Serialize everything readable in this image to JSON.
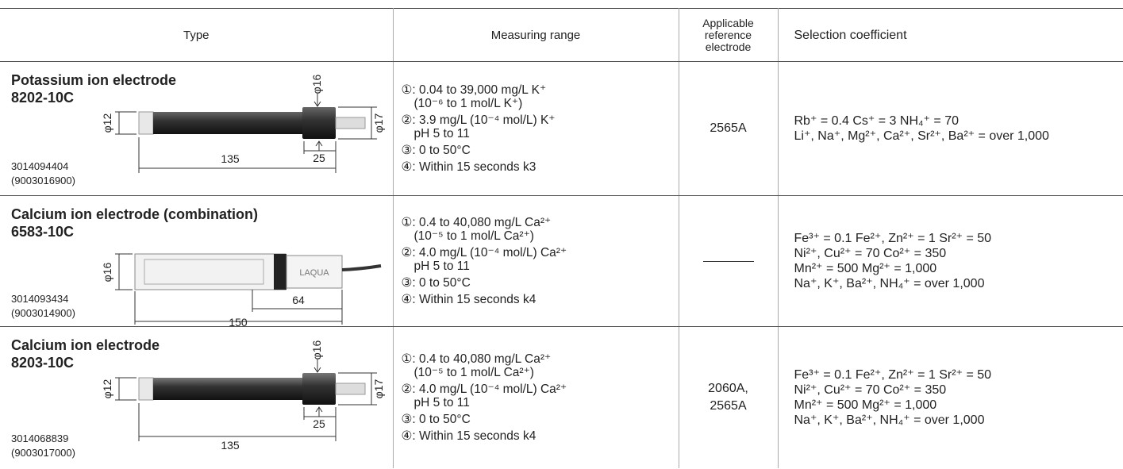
{
  "table": {
    "headers": [
      "Type",
      "Measuring range",
      "Applicable reference electrode",
      "Selection coefficient"
    ],
    "rows": [
      {
        "name": "Potassium ion electrode",
        "model": "8202-10C",
        "codes": [
          "3014094404",
          "(9003016900)"
        ],
        "dimensions": [
          "φ16",
          "φ12",
          "φ17",
          "25",
          "135"
        ],
        "range": [
          [
            "①: 0.04 to 39,000 mg/L K⁺",
            "(10⁻⁶  to 1 mol/L K⁺)"
          ],
          [
            "②: 3.9 mg/L (10⁻⁴ mol/L) K⁺",
            "pH 5 to 11"
          ],
          [
            "③: 0 to 50°C"
          ],
          [
            "④: Within 15 seconds k3"
          ]
        ],
        "reference": "2565A",
        "selection": [
          "Rb⁺ = 0.4  Cs⁺ = 3  NH₄⁺ = 70",
          "Li⁺, Na⁺, Mg²⁺, Ca²⁺, Sr²⁺, Ba²⁺ = over 1,000"
        ]
      },
      {
        "name": "Calcium ion electrode (combination)",
        "model": "6583-10C",
        "codes": [
          "3014093434",
          "(9003014900)"
        ],
        "dimensions": [
          "φ16",
          "LAQUA",
          "64",
          "150"
        ],
        "range": [
          [
            "①: 0.4 to 40,080 mg/L Ca²⁺",
            "(10⁻⁵ to 1  mol/L Ca²⁺)"
          ],
          [
            "②: 4.0 mg/L (10⁻⁴ mol/L) Ca²⁺",
            "pH 5 to 11"
          ],
          [
            "③: 0 to 50°C"
          ],
          [
            "④: Within 15 seconds k4"
          ]
        ],
        "selection": [
          "Fe³⁺ = 0.1   Fe²⁺, Zn²⁺ = 1  Sr²⁺ = 50",
          "Ni²⁺, Cu²⁺ = 70  Co²⁺ = 350",
          "Mn²⁺ = 500  Mg²⁺ = 1,000",
          "Na⁺, K⁺, Ba²⁺, NH₄⁺ = over 1,000"
        ]
      },
      {
        "name": "Calcium ion electrode",
        "model": "8203-10C",
        "codes": [
          "3014068839",
          "(9003017000)"
        ],
        "dimensions": [
          "φ16",
          "φ12",
          "φ17",
          "25",
          "135"
        ],
        "range": [
          [
            "①: 0.4 to 40,080 mg/L Ca²⁺",
            "(10⁻⁵ to 1  mol/L Ca²⁺)"
          ],
          [
            "②: 4.0 mg/L (10⁻⁴ mol/L) Ca²⁺",
            "pH 5 to 11"
          ],
          [
            "③: 0 to 50°C"
          ],
          [
            "④: Within 15 seconds k4"
          ]
        ],
        "reference": "2060A,\n2565A",
        "selection": [
          "Fe³⁺ = 0.1   Fe²⁺, Zn²⁺ = 1  Sr²⁺ = 50",
          "Ni²⁺, Cu²⁺ = 70  Co²⁺ = 350",
          "Mn²⁺ = 500  Mg²⁺ = 1,000",
          "Na⁺, K⁺, Ba²⁺, NH₄⁺ = over 1,000"
        ]
      }
    ]
  }
}
